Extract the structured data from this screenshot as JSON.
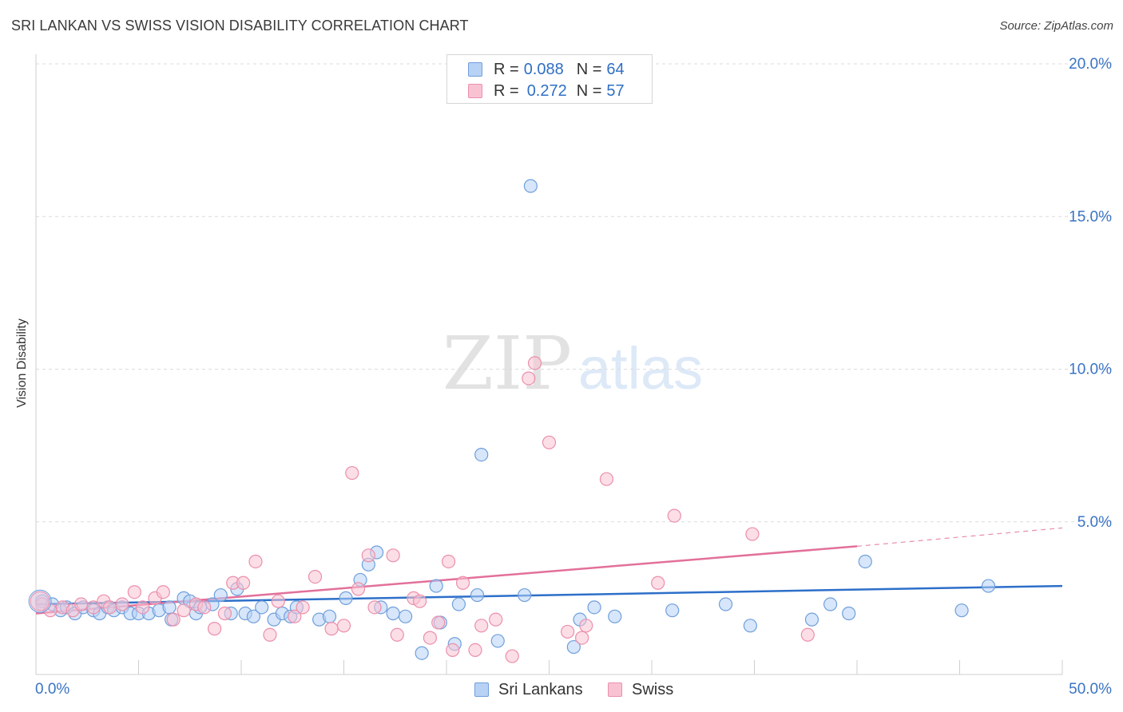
{
  "title": "SRI LANKAN VS SWISS VISION DISABILITY CORRELATION CHART",
  "source": "Source: ZipAtlas.com",
  "watermark": {
    "zip": "ZIP",
    "atlas": "atlas"
  },
  "legend": [
    {
      "r_label": "R =",
      "r_value": "0.088",
      "n_label": "N =",
      "n_value": "64"
    },
    {
      "r_label": "R =",
      "r_value": "0.272",
      "n_label": "N =",
      "n_value": "57"
    }
  ],
  "bottom_legend": [
    "Sri Lankans",
    "Swiss"
  ],
  "colors": {
    "sri_fill": "#b7d2f5",
    "sri_stroke": "#6f9fdc",
    "sri_line": "#2d6fc9",
    "swiss_fill": "#f9c2d2",
    "swiss_stroke": "#eb8fac",
    "swiss_line": "#e2709a",
    "tick_label": "#3a74c4",
    "grid": "#dcdcdc"
  },
  "chart_data": {
    "type": "scatter",
    "title": "SRI LANKAN VS SWISS VISION DISABILITY CORRELATION CHART",
    "xlabel": "",
    "ylabel": "Vision Disability",
    "xlim": [
      0,
      50
    ],
    "ylim": [
      0,
      20
    ],
    "x_tick_labels": [
      "0.0%",
      "50.0%"
    ],
    "y_ticks": [
      5,
      10,
      15,
      20
    ],
    "y_tick_labels": [
      "5.0%",
      "10.0%",
      "15.0%",
      "20.0%"
    ],
    "grid": "horizontal dashed",
    "series": [
      {
        "name": "Sri Lankans",
        "r": 0.088,
        "n": 64,
        "trend": {
          "x0": 0,
          "y0": 2.3,
          "x1": 50,
          "y1": 2.9
        },
        "points": [
          [
            0.3,
            2.4
          ],
          [
            0.8,
            2.3
          ],
          [
            1.2,
            2.1
          ],
          [
            1.5,
            2.2
          ],
          [
            1.9,
            2.0
          ],
          [
            2.3,
            2.2
          ],
          [
            2.8,
            2.1
          ],
          [
            3.1,
            2.0
          ],
          [
            3.5,
            2.2
          ],
          [
            3.8,
            2.1
          ],
          [
            4.2,
            2.2
          ],
          [
            4.6,
            2.0
          ],
          [
            5.0,
            2.0
          ],
          [
            5.5,
            2.0
          ],
          [
            6.0,
            2.1
          ],
          [
            6.5,
            2.2
          ],
          [
            6.6,
            1.8
          ],
          [
            7.2,
            2.5
          ],
          [
            7.5,
            2.4
          ],
          [
            7.8,
            2.0
          ],
          [
            8.0,
            2.2
          ],
          [
            8.6,
            2.3
          ],
          [
            9.0,
            2.6
          ],
          [
            9.5,
            2.0
          ],
          [
            9.8,
            2.8
          ],
          [
            10.2,
            2.0
          ],
          [
            10.6,
            1.9
          ],
          [
            11.0,
            2.2
          ],
          [
            11.6,
            1.8
          ],
          [
            12.0,
            2.0
          ],
          [
            12.4,
            1.9
          ],
          [
            12.7,
            2.2
          ],
          [
            13.8,
            1.8
          ],
          [
            14.3,
            1.9
          ],
          [
            15.1,
            2.5
          ],
          [
            15.8,
            3.1
          ],
          [
            16.2,
            3.6
          ],
          [
            16.6,
            4.0
          ],
          [
            16.8,
            2.2
          ],
          [
            17.4,
            2.0
          ],
          [
            18.0,
            1.9
          ],
          [
            18.8,
            0.7
          ],
          [
            19.5,
            2.9
          ],
          [
            19.7,
            1.7
          ],
          [
            20.4,
            1.0
          ],
          [
            20.6,
            2.3
          ],
          [
            21.5,
            2.6
          ],
          [
            21.7,
            7.2
          ],
          [
            22.5,
            1.1
          ],
          [
            23.8,
            2.6
          ],
          [
            24.1,
            16.0
          ],
          [
            26.2,
            0.9
          ],
          [
            26.5,
            1.8
          ],
          [
            27.2,
            2.2
          ],
          [
            28.2,
            1.9
          ],
          [
            31.0,
            2.1
          ],
          [
            33.6,
            2.3
          ],
          [
            34.8,
            1.6
          ],
          [
            37.8,
            1.8
          ],
          [
            38.7,
            2.3
          ],
          [
            39.6,
            2.0
          ],
          [
            40.4,
            3.7
          ],
          [
            45.1,
            2.1
          ],
          [
            46.4,
            2.9
          ]
        ]
      },
      {
        "name": "Swiss",
        "r": 0.272,
        "n": 57,
        "trend": {
          "x0": 0,
          "y0": 2.0,
          "x1": 40,
          "y1": 4.2,
          "dash_x1": 50,
          "dash_y1": 4.8
        },
        "points": [
          [
            0.3,
            2.3
          ],
          [
            0.7,
            2.1
          ],
          [
            1.3,
            2.2
          ],
          [
            1.8,
            2.1
          ],
          [
            2.2,
            2.3
          ],
          [
            2.8,
            2.2
          ],
          [
            3.3,
            2.4
          ],
          [
            3.6,
            2.2
          ],
          [
            4.2,
            2.3
          ],
          [
            4.8,
            2.7
          ],
          [
            5.2,
            2.2
          ],
          [
            5.8,
            2.5
          ],
          [
            6.2,
            2.7
          ],
          [
            6.7,
            1.8
          ],
          [
            7.2,
            2.1
          ],
          [
            7.8,
            2.3
          ],
          [
            8.2,
            2.2
          ],
          [
            8.7,
            1.5
          ],
          [
            9.2,
            2.0
          ],
          [
            9.6,
            3.0
          ],
          [
            10.1,
            3.0
          ],
          [
            10.7,
            3.7
          ],
          [
            11.4,
            1.3
          ],
          [
            11.8,
            2.4
          ],
          [
            12.6,
            1.9
          ],
          [
            13.0,
            2.2
          ],
          [
            13.6,
            3.2
          ],
          [
            14.4,
            1.5
          ],
          [
            15.0,
            1.6
          ],
          [
            15.4,
            6.6
          ],
          [
            15.7,
            2.8
          ],
          [
            16.2,
            3.9
          ],
          [
            16.5,
            2.2
          ],
          [
            17.4,
            3.9
          ],
          [
            17.6,
            1.3
          ],
          [
            18.4,
            2.5
          ],
          [
            18.7,
            2.4
          ],
          [
            19.2,
            1.2
          ],
          [
            19.6,
            1.7
          ],
          [
            20.1,
            3.7
          ],
          [
            20.3,
            0.8
          ],
          [
            20.8,
            3.0
          ],
          [
            21.4,
            0.8
          ],
          [
            21.7,
            1.6
          ],
          [
            22.4,
            1.8
          ],
          [
            23.2,
            0.6
          ],
          [
            24.0,
            9.7
          ],
          [
            24.3,
            10.2
          ],
          [
            25.0,
            7.6
          ],
          [
            25.9,
            1.4
          ],
          [
            26.6,
            1.2
          ],
          [
            26.8,
            1.6
          ],
          [
            27.8,
            6.4
          ],
          [
            30.3,
            3.0
          ],
          [
            31.1,
            5.2
          ],
          [
            34.9,
            4.6
          ],
          [
            37.6,
            1.3
          ]
        ]
      }
    ]
  }
}
